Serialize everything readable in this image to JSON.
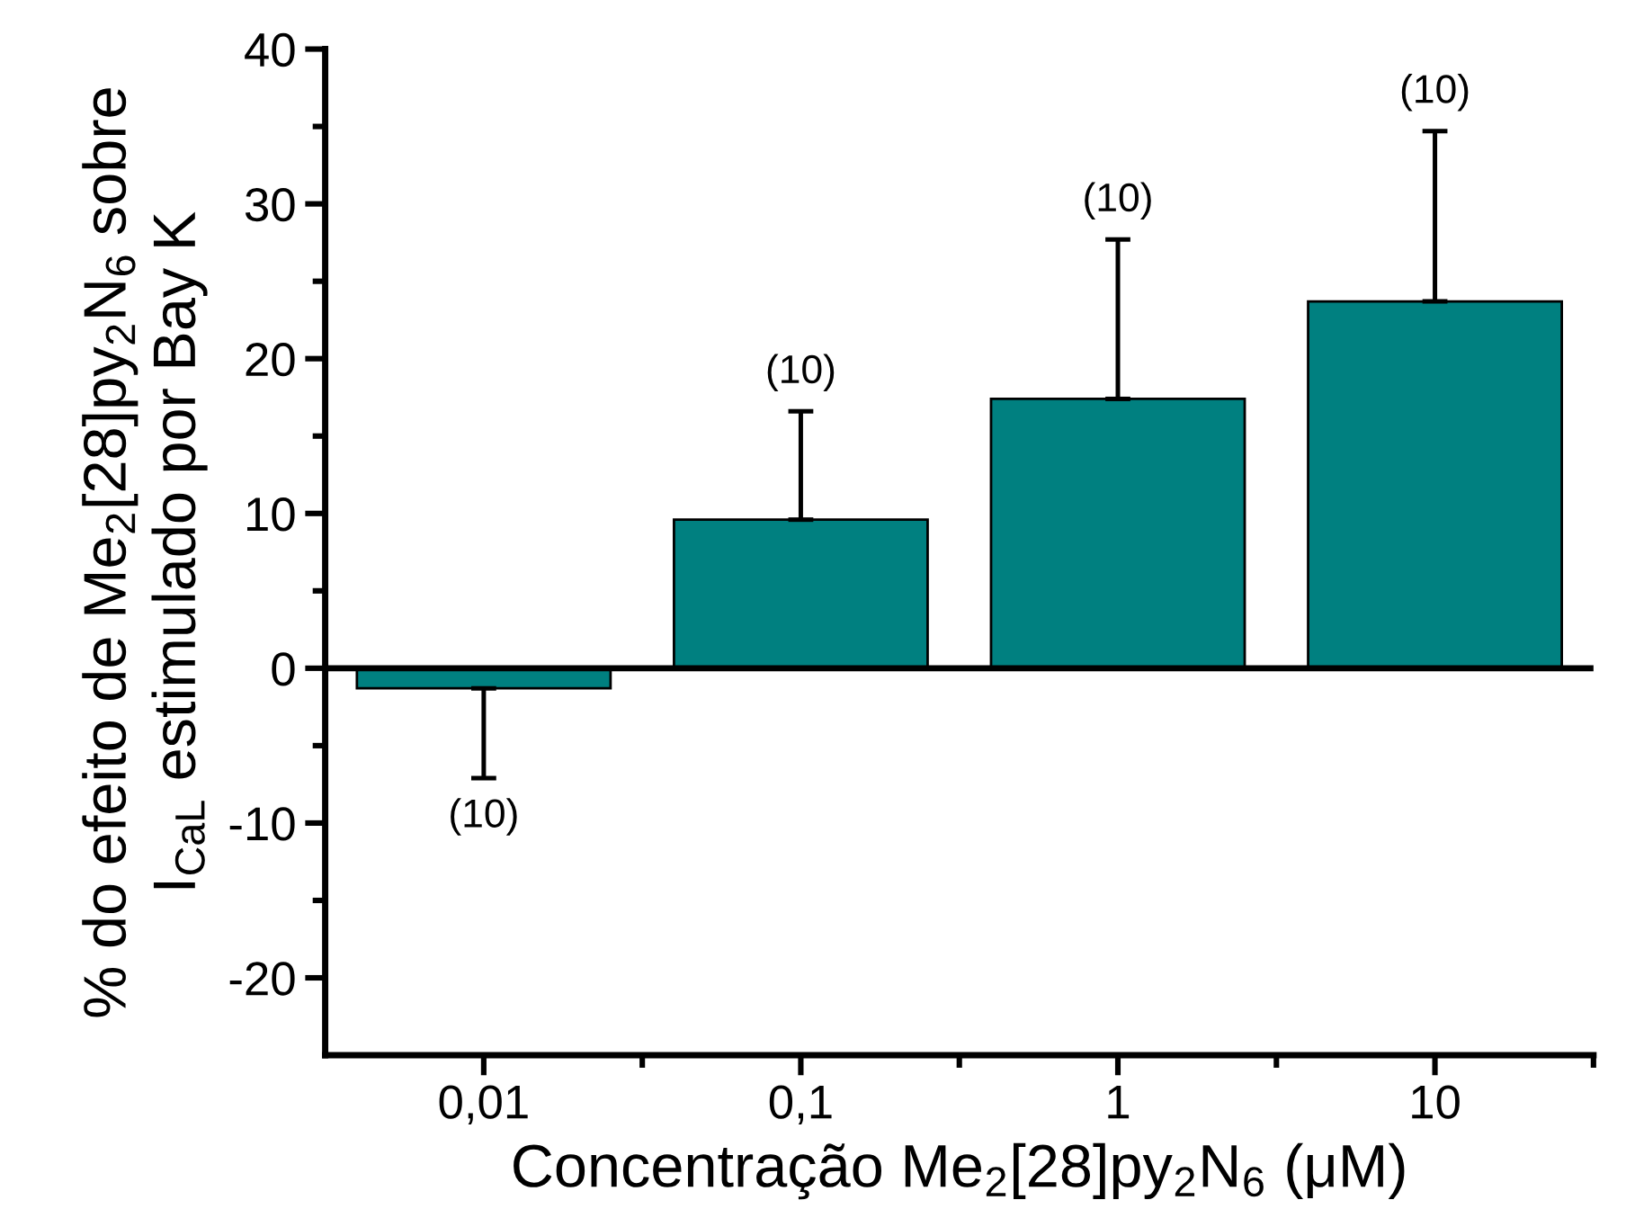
{
  "chart_data": {
    "type": "bar",
    "categories": [
      "0,01",
      "0,1",
      "1",
      "10"
    ],
    "values": [
      -1.3,
      9.6,
      17.4,
      23.7
    ],
    "errors": [
      [
        -7.1,
        -1.3
      ],
      [
        9.6,
        16.6
      ],
      [
        17.4,
        27.7
      ],
      [
        23.7,
        34.7
      ]
    ],
    "color": "#008080",
    "xlabel": "Concentração Me$_{2}$[28]py$_{2}$N$_{6}$ (μM)",
    "ylabel": "% do efeito de Me$_{2}$[28]py$_{2}$N$_{6}$ sobre\nI$_{CaL}$ estimulado por Bay K",
    "ylim": [
      -25,
      40
    ],
    "yticks": [
      -20,
      {
        "value": -15,
        "label": null
      },
      -10,
      {
        "value": -5,
        "label": null
      },
      0,
      {
        "value": 5,
        "label": null
      },
      10,
      {
        "value": 15,
        "label": null
      },
      20,
      {
        "value": 25,
        "label": null
      },
      30,
      {
        "value": 35,
        "label": null
      },
      40
    ],
    "ref_lines": [
      {
        "axis": "y",
        "value": 0,
        "color": "#000000"
      }
    ],
    "annotations": [
      "(10)",
      "(10)",
      "(10)",
      "(10)"
    ],
    "grid": false,
    "legend": false
  }
}
